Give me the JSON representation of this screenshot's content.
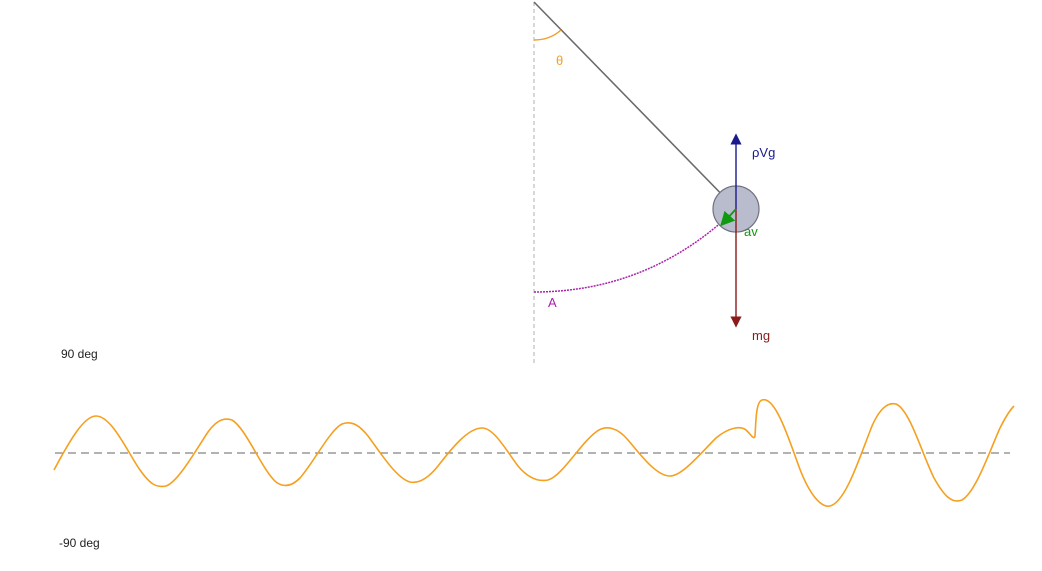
{
  "pendulum": {
    "angle_label": "θ",
    "amplitude_label": "A",
    "buoyancy_label": "ρVg",
    "weight_label": "mg",
    "acceleration_label": "av"
  },
  "graph": {
    "y_max_label": "90 deg",
    "y_min_label": "-90 deg"
  },
  "colors": {
    "rope": "#6b6b6b",
    "vertical": "#b0b0b0",
    "angle": "#f0a030",
    "arc": "#aa22aa",
    "buoyancy": "#1a1a8c",
    "weight": "#8b1a1a",
    "acceleration": "#119911",
    "bob_fill": "#b9bccc",
    "bob_stroke": "#707080",
    "trace": "#f5a020",
    "zero_line": "#666666"
  }
}
